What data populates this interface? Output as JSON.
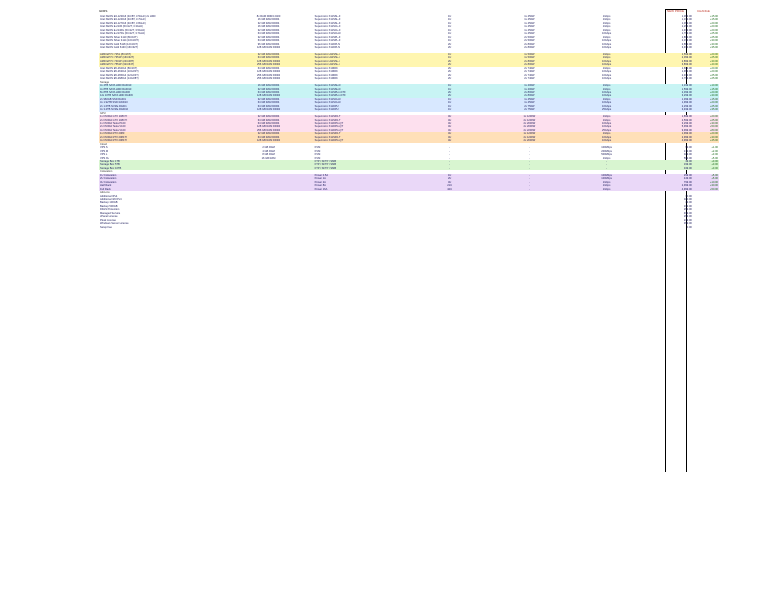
{
  "header": {
    "title": "GFRS",
    "col_price_a": "NEW PRICE",
    "col_price_b": "CHANGE"
  },
  "rows": [
    {
      "hl": "",
      "c": [
        "Intel XEON E3-1230v6 (4C/8T, 3.5GHz) 2x HDD",
        "8x RAM DDR4 2400",
        "Supermicro X11SSL-F",
        "1U",
        "1x 450W",
        "1Gbps",
        "",
        "1,099.00",
        "+15.00"
      ]
    },
    {
      "hl": "",
      "c": [
        "Intel XEON E3-1240v6 (4C/8T, 3.7GHz)",
        "16 GB RAM DDR4",
        "Supermicro X11SSL-F",
        "1U",
        "1x 450W",
        "1Gbps",
        "",
        "1,199.00",
        "+15.00"
      ]
    },
    {
      "hl": "",
      "c": [
        "Intel XEON E3-1270v6 (4C/8T, 3.8GHz)",
        "32 GB RAM DDR4",
        "Supermicro X11SSL-F",
        "1U",
        "1x 450W",
        "1Gbps",
        "",
        "1,399.00",
        "+20.00"
      ]
    },
    {
      "hl": "",
      "c": [
        "Intel XEON E-2136 (6C/12T, 3.3GHz)",
        "16 GB RAM DDR4",
        "Supermicro X11SCL-F",
        "1U",
        "1x 450W",
        "1Gbps",
        "",
        "1,299.00",
        "+20.00"
      ]
    },
    {
      "hl": "",
      "c": [
        "Intel XEON E-2146G (6C/12T, 3.5GHz)",
        "32 GB RAM DDR4",
        "Supermicro X11SCL-F",
        "1U",
        "1x 450W",
        "1Gbps",
        "",
        "1,499.00",
        "+20.00"
      ]
    },
    {
      "hl": "",
      "c": [
        "Intel XEON E-2176G (6C/12T, 3.7GHz)",
        "64 GB RAM DDR4",
        "Supermicro X11SCH-F",
        "1U",
        "1x 450W",
        "10Gbps",
        "",
        "1,799.00",
        "+25.00"
      ]
    },
    {
      "hl": "",
      "c": [
        "Intel XEON Silver 4110 (8C/16T)",
        "32 GB RAM DDR4",
        "Supermicro X11SPL-F",
        "1U",
        "2x 500W",
        "1Gbps",
        "",
        "1,899.00",
        "+25.00"
      ]
    },
    {
      "hl": "",
      "c": [
        "Intel XEON Silver 4114 (10C/20T)",
        "64 GB RAM DDR4",
        "Supermicro X11SPL-F",
        "1U",
        "2x 500W",
        "10Gbps",
        "",
        "2,199.00",
        "+30.00"
      ]
    },
    {
      "hl": "",
      "c": [
        "Intel XEON Gold 5118 (12C/24T)",
        "96 GB RAM DDR4",
        "Supermicro X11DPi-N",
        "2U",
        "2x 800W",
        "10Gbps",
        "",
        "2,899.00",
        "+30.00"
      ]
    },
    {
      "hl": "",
      "c": [
        "Intel XEON Gold 6130 (16C/32T)",
        "128 GB RAM DDR4",
        "Supermicro X11DPi-N",
        "2U",
        "2x 800W",
        "10Gbps",
        "",
        "3,499.00",
        "+35.00"
      ]
    },
    {
      "hl": "sec",
      "c": [
        "",
        "",
        "",
        "",
        "",
        "",
        "",
        "",
        ""
      ]
    },
    {
      "hl": "hl-yellow",
      "c": [
        "AMD EPYC 7251 (8C/16T)",
        "32 GB RAM DDR4",
        "Supermicro H11SSL-i",
        "1U",
        "1x 500W",
        "1Gbps",
        "",
        "1,599.00",
        "+20.00"
      ]
    },
    {
      "hl": "hl-yellow",
      "c": [
        "AMD EPYC 7351P (16C/32T)",
        "64 GB RAM DDR4",
        "Supermicro H11SSL-i",
        "1U",
        "1x 500W",
        "1Gbps",
        "",
        "2,099.00",
        "+25.00"
      ]
    },
    {
      "hl": "hl-yellow",
      "c": [
        "AMD EPYC 7401P (24C/48T)",
        "128 GB RAM DDR4",
        "Supermicro H11SSL-i",
        "2U",
        "2x 800W",
        "10Gbps",
        "",
        "2,899.00",
        "+30.00"
      ]
    },
    {
      "hl": "hl-yellow",
      "c": [
        "AMD EPYC 7551P (32C/64T)",
        "256 GB RAM DDR4",
        "Supermicro H11SSL-i",
        "2U",
        "2x 800W",
        "10Gbps",
        "",
        "3,899.00",
        "+40.00"
      ]
    },
    {
      "hl": "",
      "c": [
        "Intel XEON E5-2620v4 (8C/16T)",
        "64 GB RAM DDR4",
        "Supermicro X10DRi",
        "2U",
        "2x 740W",
        "1Gbps",
        "",
        "1,699.00",
        "+20.00"
      ]
    },
    {
      "hl": "",
      "c": [
        "Intel XEON E5-2630v4 (10C/20T)",
        "128 GB RAM DDR4",
        "Supermicro X10DRi",
        "2U",
        "2x 740W",
        "10Gbps",
        "",
        "1,999.00",
        "+20.00"
      ]
    },
    {
      "hl": "",
      "c": [
        "Intel XEON E5-2650v4 (12C/24T)",
        "256 GB RAM DDR4",
        "Supermicro X10DRi",
        "2U",
        "2x 740W",
        "10Gbps",
        "",
        "2,499.00",
        "+25.00"
      ]
    },
    {
      "hl": "",
      "c": [
        "Intel XEON E5-2680v4 (14C/28T)",
        "256 GB RAM DDR4",
        "Supermicro X10DRi",
        "2U",
        "2x 740W",
        "10Gbps",
        "",
        "2,799.00",
        "+25.00"
      ]
    },
    {
      "hl": "sec",
      "c": [
        "Storage",
        "",
        "",
        "",
        "",
        "",
        "",
        "",
        ""
      ]
    },
    {
      "hl": "hl-cyan",
      "c": [
        "4x 4TB SATA HDD RAID10",
        "16 GB RAM DDR4",
        "Supermicro X11SSH-F",
        "1U",
        "1x 400W",
        "1Gbps",
        "",
        "1,199.00",
        "+10.00"
      ]
    },
    {
      "hl": "hl-cyan",
      "c": [
        "4x 8TB SATA HDD RAID10",
        "32 GB RAM DDR4",
        "Supermicro X11SSH-F",
        "1U",
        "1x 400W",
        "1Gbps",
        "",
        "1,599.00",
        "+15.00"
      ]
    },
    {
      "hl": "hl-cyan",
      "c": [
        "8x 8TB SATA HDD RAID6",
        "64 GB RAM DDR4",
        "Supermicro X11SPH-nCTF",
        "2U",
        "2x 800W",
        "10Gbps",
        "",
        "2,399.00",
        "+20.00"
      ]
    },
    {
      "hl": "hl-cyan",
      "c": [
        "12x 10TB SATA HDD RAID6",
        "128 GB RAM DDR4",
        "Supermicro X11SPH-nCTF",
        "2U",
        "2x 800W",
        "10Gbps",
        "",
        "3,299.00",
        "+30.00"
      ]
    },
    {
      "hl": "hl-blue",
      "c": [
        "2x 960GB SSD RAID1",
        "32 GB RAM DDR4",
        "Supermicro X11SCH-F",
        "1U",
        "1x 450W",
        "1Gbps",
        "",
        "1,399.00",
        "+15.00"
      ]
    },
    {
      "hl": "hl-blue",
      "c": [
        "4x 1.92TB SSD RAID10",
        "64 GB RAM DDR4",
        "Supermicro X11SCH-F",
        "1U",
        "1x 450W",
        "10Gbps",
        "",
        "1,999.00",
        "+20.00"
      ]
    },
    {
      "hl": "hl-blue",
      "c": [
        "2x 1.6TB NVMe RAID1",
        "64 GB RAM DDR4",
        "Supermicro X11DPU",
        "1U",
        "2x 750W",
        "10Gbps",
        "",
        "2,299.00",
        "+25.00"
      ]
    },
    {
      "hl": "hl-blue",
      "c": [
        "4x 3.2TB NVMe RAID10",
        "128 GB RAM DDR4",
        "Supermicro X11DPU",
        "1U",
        "2x 750W",
        "25Gbps",
        "",
        "3,499.00",
        "+35.00"
      ]
    },
    {
      "hl": "sec",
      "c": [
        "GPU",
        "",
        "",
        "",
        "",
        "",
        "",
        "",
        ""
      ]
    },
    {
      "hl": "hl-pink",
      "c": [
        "1x NVIDIA GTX 1080 Ti",
        "32 GB RAM DDR4",
        "Supermicro X11SPA-T",
        "4U",
        "1x 1200W",
        "1Gbps",
        "",
        "1,899.00",
        "+20.00"
      ]
    },
    {
      "hl": "hl-pink",
      "c": [
        "2x NVIDIA GTX 1080 Ti",
        "64 GB RAM DDR4",
        "Supermicro X11SPA-T",
        "4U",
        "2x 1200W",
        "1Gbps",
        "",
        "2,599.00",
        "+25.00"
      ]
    },
    {
      "hl": "hl-pink",
      "c": [
        "1x NVIDIA Tesla P100",
        "64 GB RAM DDR4",
        "Supermicro X11DPG-QT",
        "4U",
        "2x 2000W",
        "10Gbps",
        "",
        "3,299.00",
        "+30.00"
      ]
    },
    {
      "hl": "hl-pink",
      "c": [
        "2x NVIDIA Tesla V100",
        "128 GB RAM DDR4",
        "Supermicro X11DPG-QT",
        "4U",
        "2x 2000W",
        "10Gbps",
        "",
        "5,999.00",
        "+50.00"
      ]
    },
    {
      "hl": "hl-pink",
      "c": [
        "4x NVIDIA Tesla V100",
        "256 GB RAM DDR4",
        "Supermicro X11DPG-QT",
        "4U",
        "2x 2200W",
        "25Gbps",
        "",
        "9,999.00",
        "+80.00"
      ]
    },
    {
      "hl": "hl-orange",
      "c": [
        "1x NVIDIA RTX 2080",
        "32 GB RAM DDR4",
        "Supermicro X11SPA-T",
        "4U",
        "1x 1200W",
        "1Gbps",
        "",
        "1,999.00",
        "+20.00"
      ]
    },
    {
      "hl": "hl-orange",
      "c": [
        "2x NVIDIA RTX 2080 Ti",
        "64 GB RAM DDR4",
        "Supermicro X11SPA-T",
        "4U",
        "2x 1200W",
        "10Gbps",
        "",
        "2,999.00",
        "+30.00"
      ]
    },
    {
      "hl": "hl-orange",
      "c": [
        "4x NVIDIA RTX 2080 Ti",
        "128 GB RAM DDR4",
        "Supermicro X11DPG-QT",
        "4U",
        "2x 2000W",
        "10Gbps",
        "",
        "4,999.00",
        "+45.00"
      ]
    },
    {
      "hl": "sec",
      "c": [
        "Cloud",
        "",
        "",
        "",
        "",
        "",
        "",
        "",
        ""
      ]
    },
    {
      "hl": "",
      "c": [
        "VPS S",
        "2 GB RAM",
        "KVM",
        "-",
        "-",
        "100Mbps",
        "",
        "99.00",
        "+1.00"
      ]
    },
    {
      "hl": "",
      "c": [
        "VPS M",
        "4 GB RAM",
        "KVM",
        "-",
        "-",
        "200Mbps",
        "",
        "179.00",
        "+2.00"
      ]
    },
    {
      "hl": "",
      "c": [
        "VPS L",
        "8 GB RAM",
        "KVM",
        "-",
        "-",
        "500Mbps",
        "",
        "329.00",
        "+3.00"
      ]
    },
    {
      "hl": "",
      "c": [
        "VPS XL",
        "16 GB RAM",
        "KVM",
        "-",
        "-",
        "1Gbps",
        "",
        "599.00",
        "+5.00"
      ]
    },
    {
      "hl": "hl-green",
      "c": [
        "Storage Box 1TB",
        "",
        "FTP / SFTP / SMB",
        "-",
        "-",
        "-",
        "",
        "49.00",
        "+0.00"
      ]
    },
    {
      "hl": "hl-green",
      "c": [
        "Storage Box 5TB",
        "",
        "FTP / SFTP / SMB",
        "-",
        "-",
        "-",
        "",
        "199.00",
        "+0.00"
      ]
    },
    {
      "hl": "hl-green",
      "c": [
        "Storage Box 10TB",
        "",
        "FTP / SFTP / SMB",
        "-",
        "-",
        "-",
        "",
        "349.00",
        "+0.00"
      ]
    },
    {
      "hl": "sec",
      "c": [
        "Colocation",
        "",
        "",
        "",
        "",
        "",
        "",
        "",
        ""
      ]
    },
    {
      "hl": "hl-lav",
      "c": [
        "1U Colocation",
        "",
        "Power 0.5A",
        "1U",
        "-",
        "100Mbps",
        "",
        "299.00",
        "+5.00"
      ]
    },
    {
      "hl": "hl-lav",
      "c": [
        "2U Colocation",
        "",
        "Power 1A",
        "2U",
        "-",
        "100Mbps",
        "",
        "449.00",
        "+5.00"
      ]
    },
    {
      "hl": "hl-lav",
      "c": [
        "4U Colocation",
        "",
        "Power 2A",
        "4U",
        "-",
        "1Gbps",
        "",
        "799.00",
        "+10.00"
      ]
    },
    {
      "hl": "hl-lav",
      "c": [
        "Half Rack",
        "",
        "Power 8A",
        "21U",
        "-",
        "1Gbps",
        "",
        "2,999.00",
        "+30.00"
      ]
    },
    {
      "hl": "hl-lav",
      "c": [
        "Full Rack",
        "",
        "Power 16A",
        "42U",
        "-",
        "1Gbps",
        "",
        "4,999.00",
        "+50.00"
      ]
    },
    {
      "hl": "sec",
      "c": [
        "Add-ons",
        "",
        "",
        "",
        "",
        "",
        "",
        "",
        ""
      ]
    },
    {
      "hl": "",
      "c": [
        "Additional IPv4",
        "",
        "",
        "",
        "",
        "",
        "",
        "30.00",
        ""
      ]
    },
    {
      "hl": "",
      "c": [
        "Additional /29 IPv4",
        "",
        "",
        "",
        "",
        "",
        "",
        "180.00",
        ""
      ]
    },
    {
      "hl": "",
      "c": [
        "Backup 100GB",
        "",
        "",
        "",
        "",
        "",
        "",
        "49.00",
        ""
      ]
    },
    {
      "hl": "",
      "c": [
        "Backup 500GB",
        "",
        "",
        "",
        "",
        "",
        "",
        "199.00",
        ""
      ]
    },
    {
      "hl": "",
      "c": [
        "DDoS Protection",
        "",
        "",
        "",
        "",
        "",
        "",
        "299.00",
        ""
      ]
    },
    {
      "hl": "",
      "c": [
        "Managed Service",
        "",
        "",
        "",
        "",
        "",
        "",
        "499.00",
        ""
      ]
    },
    {
      "hl": "",
      "c": [
        "cPanel License",
        "",
        "",
        "",
        "",
        "",
        "",
        "299.00",
        ""
      ]
    },
    {
      "hl": "",
      "c": [
        "Plesk License",
        "",
        "",
        "",
        "",
        "",
        "",
        "249.00",
        ""
      ]
    },
    {
      "hl": "",
      "c": [
        "Windows Server License",
        "",
        "",
        "",
        "",
        "",
        "",
        "399.00",
        ""
      ]
    },
    {
      "hl": "",
      "c": [
        "Setup Fee",
        "",
        "",
        "",
        "",
        "",
        "",
        "0.00",
        ""
      ]
    }
  ]
}
